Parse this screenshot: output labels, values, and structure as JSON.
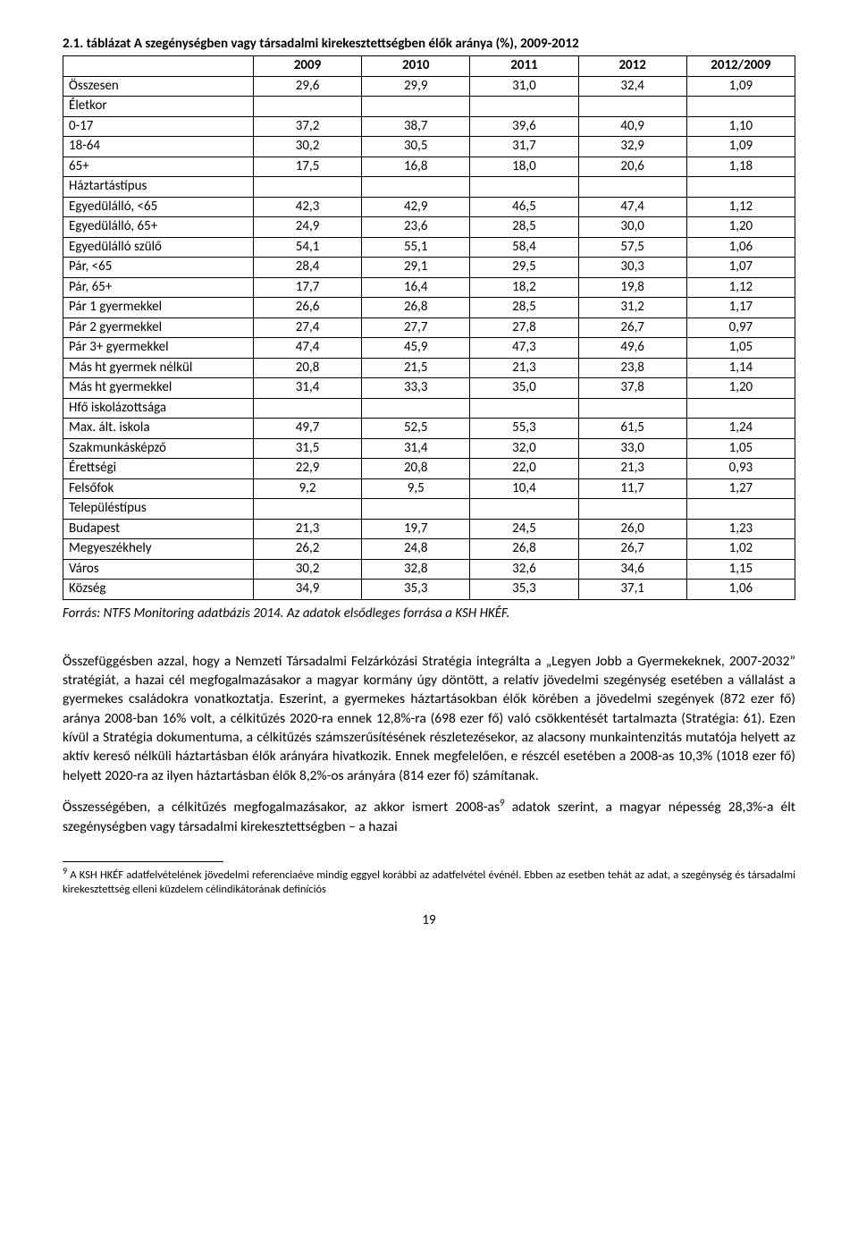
{
  "table": {
    "title": "2.1. táblázat A szegénységben vagy társadalmi kirekesztettségben élők aránya (%), 2009-2012",
    "title_fontsize": 15,
    "title_fontweight": "bold",
    "border_color": "#000000",
    "background_color": "#ffffff",
    "font_family": "Calibri",
    "cell_fontsize": 15,
    "columns": [
      "",
      "2009",
      "2010",
      "2011",
      "2012",
      "2012/2009"
    ],
    "col_widths_pct": [
      26,
      14.8,
      14.8,
      14.8,
      14.8,
      14.8
    ],
    "num_align": "center",
    "label_align": "left",
    "rows": [
      {
        "label": "Összesen",
        "vals": [
          "29,6",
          "29,9",
          "31,0",
          "32,4",
          "1,09"
        ]
      },
      {
        "label": "Életkor",
        "section": true
      },
      {
        "label": "0-17",
        "vals": [
          "37,2",
          "38,7",
          "39,6",
          "40,9",
          "1,10"
        ]
      },
      {
        "label": "18-64",
        "vals": [
          "30,2",
          "30,5",
          "31,7",
          "32,9",
          "1,09"
        ]
      },
      {
        "label": "65+",
        "vals": [
          "17,5",
          "16,8",
          "18,0",
          "20,6",
          "1,18"
        ]
      },
      {
        "label": "Háztartástípus",
        "section": true
      },
      {
        "label": "Egyedülálló, <65",
        "vals": [
          "42,3",
          "42,9",
          "46,5",
          "47,4",
          "1,12"
        ]
      },
      {
        "label": "Egyedülálló, 65+",
        "vals": [
          "24,9",
          "23,6",
          "28,5",
          "30,0",
          "1,20"
        ]
      },
      {
        "label": "Egyedülálló szülő",
        "vals": [
          "54,1",
          "55,1",
          "58,4",
          "57,5",
          "1,06"
        ]
      },
      {
        "label": "Pár, <65",
        "vals": [
          "28,4",
          "29,1",
          "29,5",
          "30,3",
          "1,07"
        ]
      },
      {
        "label": "Pár, 65+",
        "vals": [
          "17,7",
          "16,4",
          "18,2",
          "19,8",
          "1,12"
        ]
      },
      {
        "label": "Pár 1 gyermekkel",
        "vals": [
          "26,6",
          "26,8",
          "28,5",
          "31,2",
          "1,17"
        ]
      },
      {
        "label": "Pár 2 gyermekkel",
        "vals": [
          "27,4",
          "27,7",
          "27,8",
          "26,7",
          "0,97"
        ]
      },
      {
        "label": "Pár 3+ gyermekkel",
        "vals": [
          "47,4",
          "45,9",
          "47,3",
          "49,6",
          "1,05"
        ]
      },
      {
        "label": "Más ht gyermek nélkül",
        "vals": [
          "20,8",
          "21,5",
          "21,3",
          "23,8",
          "1,14"
        ]
      },
      {
        "label": "Más ht gyermekkel",
        "vals": [
          "31,4",
          "33,3",
          "35,0",
          "37,8",
          "1,20"
        ]
      },
      {
        "label": "Hfő iskolázottsága",
        "section": true
      },
      {
        "label": "Max. ált. iskola",
        "vals": [
          "49,7",
          "52,5",
          "55,3",
          "61,5",
          "1,24"
        ]
      },
      {
        "label": "Szakmunkásképző",
        "vals": [
          "31,5",
          "31,4",
          "32,0",
          "33,0",
          "1,05"
        ]
      },
      {
        "label": "Érettségi",
        "vals": [
          "22,9",
          "20,8",
          "22,0",
          "21,3",
          "0,93"
        ]
      },
      {
        "label": "Felsőfok",
        "vals": [
          "9,2",
          "9,5",
          "10,4",
          "11,7",
          "1,27"
        ]
      },
      {
        "label": "Településtípus",
        "section": true
      },
      {
        "label": "Budapest",
        "vals": [
          "21,3",
          "19,7",
          "24,5",
          "26,0",
          "1,23"
        ]
      },
      {
        "label": "Megyeszékhely",
        "vals": [
          "26,2",
          "24,8",
          "26,8",
          "26,7",
          "1,02"
        ]
      },
      {
        "label": "Város",
        "vals": [
          "30,2",
          "32,8",
          "32,6",
          "34,6",
          "1,15"
        ]
      },
      {
        "label": "Község",
        "vals": [
          "34,9",
          "35,3",
          "35,3",
          "37,1",
          "1,06"
        ]
      }
    ]
  },
  "source_line": "Forrás: NTFS Monitoring adatbázis 2014. Az adatok elsődleges forrása a KSH HKÉF.",
  "paragraphs": {
    "p1": "Összefüggésben azzal, hogy a Nemzeti Társadalmi Felzárkózási Stratégia integrálta a „Legyen Jobb a Gyermekeknek, 2007-2032” stratégiát, a hazai cél megfogalmazásakor a magyar kormány úgy döntött, a relatív jövedelmi szegénység esetében a vállalást a gyermekes családokra vonatkoztatja. Eszerint, a gyermekes háztartásokban élők körében a jövedelmi szegények (872 ezer fő) aránya 2008-ban 16% volt, a célkitűzés 2020-ra ennek 12,8%-ra (698 ezer fő) való csökkentését tartalmazta (Stratégia: 61). Ezen kívül a Stratégia dokumentuma, a célkitűzés számszerűsítésének részletezésekor, az alacsony munkaintenzitás mutatója helyett az aktív kereső nélküli háztartásban élők arányára hivatkozik. Ennek megfelelően, e részcél esetében a 2008-as 10,3% (1018 ezer fő) helyett 2020-ra az ilyen háztartásban élők 8,2%-os arányára (814 ezer fő) számítanak.",
    "p2_before": "Összességében, a célkitűzés megfogalmazásakor, az akkor ismert 2008-as",
    "p2_fnref": "9",
    "p2_after": " adatok szerint, a magyar népesség 28,3%-a élt szegénységben vagy társadalmi kirekesztettségben – a hazai"
  },
  "footnote": {
    "marker": "9",
    "text": " A KSH HKÉF adatfelvételének jövedelmi referenciaéve mindig eggyel korábbi az adatfelvétel événél. Ebben az esetben tehát az adat, a szegénység és társadalmi kirekesztettség elleni küzdelem célindikátorának definíciós"
  },
  "page_number": "19",
  "colors": {
    "text": "#000000",
    "background": "#ffffff",
    "border": "#000000"
  },
  "typography": {
    "body_fontsize": 15.5,
    "footnote_fontsize": 12.5,
    "line_height": 1.38
  }
}
